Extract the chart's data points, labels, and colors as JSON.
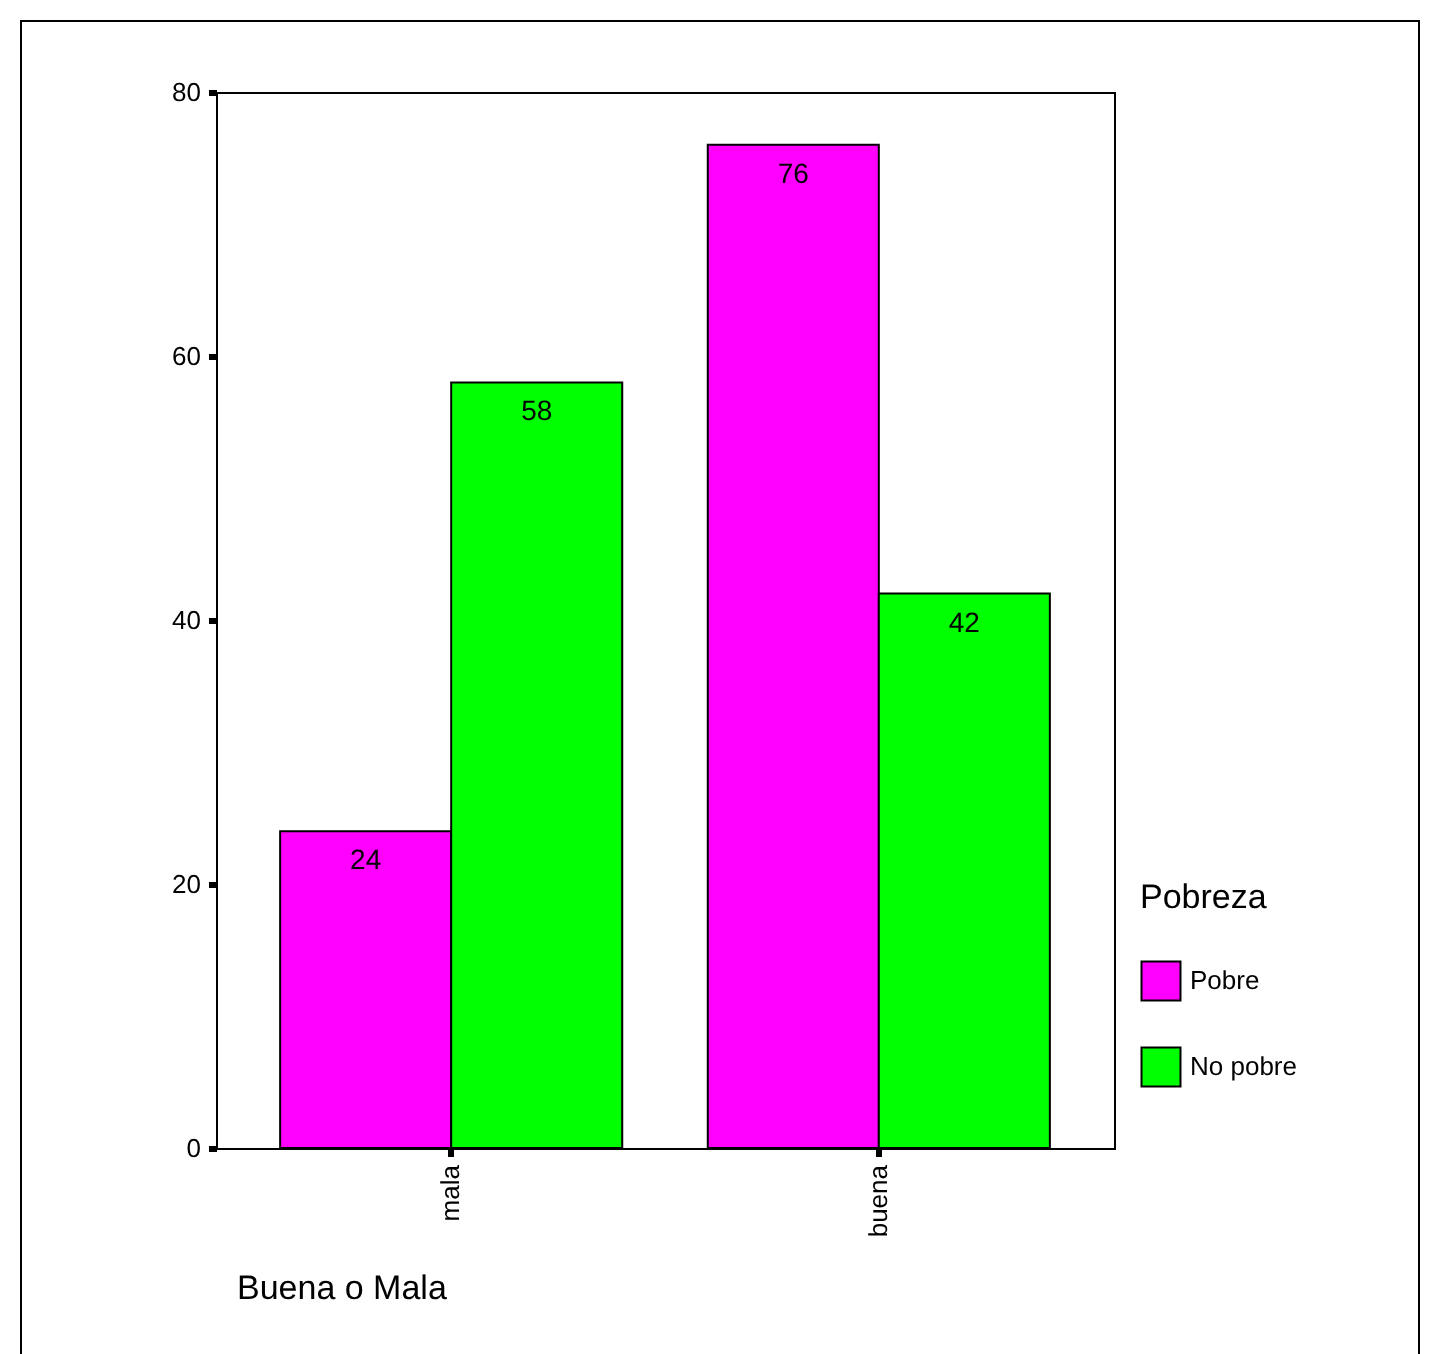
{
  "chart_data": {
    "type": "bar",
    "xlabel": "Buena o Mala",
    "legend_title": "Pobreza",
    "categories": [
      "mala",
      "buena"
    ],
    "series": [
      {
        "name": "Pobre",
        "color": "#ff00ff",
        "values": [
          24,
          76
        ]
      },
      {
        "name": "No pobre",
        "color": "#00ff00",
        "values": [
          58,
          42
        ]
      }
    ],
    "ylim": [
      0,
      80
    ],
    "yticks": [
      0,
      20,
      40,
      60,
      80
    ],
    "data_labels": true,
    "legend": "right",
    "grid": false
  }
}
